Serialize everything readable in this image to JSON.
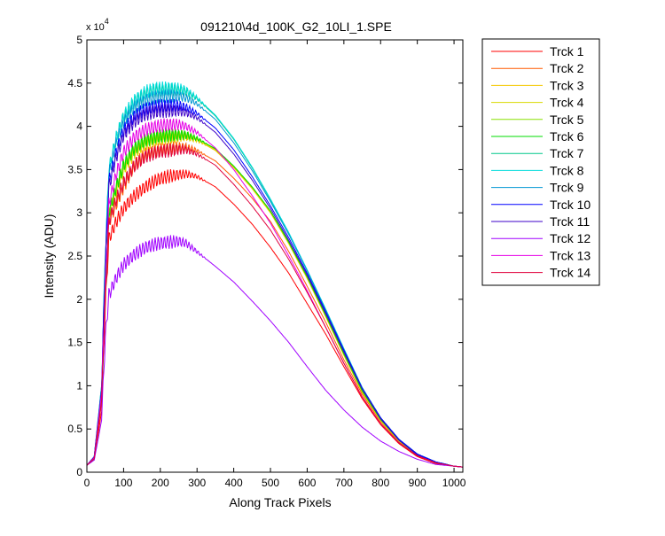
{
  "chart_data": {
    "type": "line",
    "title": "091210\\4d_100K_G2_10LI_1.SPE",
    "xlabel": "Along Track Pixels",
    "ylabel": "Intensity (ADU)",
    "xlim": [
      0,
      1024
    ],
    "ylim": [
      0,
      5
    ],
    "y_exponent_label": "x 10",
    "y_exponent": "4",
    "xticks": [
      0,
      100,
      200,
      300,
      400,
      500,
      600,
      700,
      800,
      900,
      1000
    ],
    "yticks": [
      0,
      0.5,
      1,
      1.5,
      2,
      2.5,
      3,
      3.5,
      4,
      4.5,
      5
    ],
    "ytick_labels": [
      "0",
      "0.5",
      "1",
      "1.5",
      "2",
      "2.5",
      "3",
      "3.5",
      "4",
      "4.5",
      "5"
    ],
    "grid": false,
    "legend_position": "outside right, top",
    "x": [
      0,
      20,
      40,
      50,
      60,
      80,
      100,
      130,
      160,
      190,
      220,
      250,
      270,
      300,
      350,
      400,
      450,
      500,
      550,
      600,
      650,
      700,
      750,
      800,
      850,
      900,
      950,
      1000,
      1024
    ],
    "series": [
      {
        "name": "Trck 1",
        "color": "#ff0000",
        "values": [
          0.08,
          0.15,
          0.7,
          1.9,
          2.7,
          2.9,
          3.05,
          3.2,
          3.3,
          3.38,
          3.42,
          3.44,
          3.45,
          3.42,
          3.3,
          3.1,
          2.87,
          2.6,
          2.3,
          1.95,
          1.6,
          1.22,
          0.85,
          0.55,
          0.33,
          0.18,
          0.1,
          0.07,
          0.06
        ]
      },
      {
        "name": "Trck 2",
        "color": "#ff5a00",
        "values": [
          0.08,
          0.16,
          0.8,
          2.0,
          2.9,
          3.1,
          3.3,
          3.55,
          3.68,
          3.72,
          3.74,
          3.76,
          3.76,
          3.72,
          3.6,
          3.4,
          3.17,
          2.9,
          2.55,
          2.15,
          1.74,
          1.3,
          0.9,
          0.58,
          0.35,
          0.19,
          0.11,
          0.07,
          0.06
        ]
      },
      {
        "name": "Trck 3",
        "color": "#f5c800",
        "values": [
          0.08,
          0.16,
          0.85,
          2.05,
          3.0,
          3.25,
          3.5,
          3.7,
          3.8,
          3.85,
          3.87,
          3.88,
          3.88,
          3.84,
          3.72,
          3.52,
          3.28,
          3.0,
          2.64,
          2.24,
          1.8,
          1.35,
          0.92,
          0.6,
          0.36,
          0.2,
          0.11,
          0.07,
          0.06
        ]
      },
      {
        "name": "Trck 4",
        "color": "#d8d800",
        "values": [
          0.08,
          0.16,
          0.85,
          2.05,
          3.0,
          3.27,
          3.52,
          3.72,
          3.82,
          3.86,
          3.88,
          3.89,
          3.89,
          3.85,
          3.73,
          3.53,
          3.29,
          3.01,
          2.65,
          2.25,
          1.81,
          1.36,
          0.93,
          0.6,
          0.36,
          0.2,
          0.11,
          0.07,
          0.06
        ]
      },
      {
        "name": "Trck 5",
        "color": "#88e000",
        "values": [
          0.08,
          0.16,
          0.86,
          2.06,
          3.02,
          3.3,
          3.55,
          3.75,
          3.84,
          3.88,
          3.9,
          3.9,
          3.9,
          3.86,
          3.74,
          3.54,
          3.3,
          3.02,
          2.66,
          2.26,
          1.82,
          1.37,
          0.94,
          0.61,
          0.37,
          0.2,
          0.11,
          0.07,
          0.06
        ]
      },
      {
        "name": "Trck 6",
        "color": "#00dd00",
        "values": [
          0.08,
          0.16,
          0.86,
          2.06,
          3.02,
          3.3,
          3.55,
          3.75,
          3.84,
          3.88,
          3.9,
          3.9,
          3.9,
          3.86,
          3.74,
          3.54,
          3.3,
          3.02,
          2.66,
          2.26,
          1.82,
          1.37,
          0.94,
          0.61,
          0.37,
          0.2,
          0.11,
          0.07,
          0.06
        ]
      },
      {
        "name": "Trck 7",
        "color": "#00c88a",
        "values": [
          0.08,
          0.18,
          1.0,
          2.5,
          3.5,
          3.85,
          4.1,
          4.28,
          4.38,
          4.42,
          4.42,
          4.42,
          4.4,
          4.32,
          4.12,
          3.85,
          3.52,
          3.15,
          2.76,
          2.33,
          1.88,
          1.42,
          0.97,
          0.63,
          0.38,
          0.21,
          0.12,
          0.07,
          0.06
        ]
      },
      {
        "name": "Trck 8",
        "color": "#00dcdc",
        "values": [
          0.08,
          0.18,
          1.0,
          2.5,
          3.5,
          3.87,
          4.12,
          4.3,
          4.4,
          4.44,
          4.44,
          4.44,
          4.42,
          4.33,
          4.13,
          3.86,
          3.53,
          3.16,
          2.77,
          2.34,
          1.89,
          1.43,
          0.98,
          0.63,
          0.38,
          0.21,
          0.12,
          0.07,
          0.06
        ]
      },
      {
        "name": "Trck 9",
        "color": "#0096d2",
        "values": [
          0.08,
          0.18,
          0.98,
          2.45,
          3.45,
          3.8,
          4.05,
          4.22,
          4.3,
          4.34,
          4.35,
          4.35,
          4.33,
          4.26,
          4.08,
          3.81,
          3.49,
          3.13,
          2.75,
          2.33,
          1.88,
          1.42,
          0.97,
          0.63,
          0.38,
          0.21,
          0.12,
          0.07,
          0.06
        ]
      },
      {
        "name": "Trck 10",
        "color": "#0000ff",
        "values": [
          0.08,
          0.18,
          0.95,
          2.4,
          3.35,
          3.7,
          3.95,
          4.12,
          4.2,
          4.23,
          4.24,
          4.24,
          4.22,
          4.15,
          3.98,
          3.73,
          3.42,
          3.08,
          2.71,
          2.3,
          1.86,
          1.41,
          0.97,
          0.63,
          0.38,
          0.21,
          0.12,
          0.07,
          0.06
        ]
      },
      {
        "name": "Trck 11",
        "color": "#3c00c8",
        "values": [
          0.08,
          0.18,
          0.95,
          2.35,
          3.3,
          3.65,
          3.9,
          4.06,
          4.14,
          4.17,
          4.18,
          4.18,
          4.16,
          4.1,
          3.93,
          3.68,
          3.38,
          3.05,
          2.68,
          2.28,
          1.84,
          1.39,
          0.96,
          0.62,
          0.37,
          0.2,
          0.11,
          0.07,
          0.06
        ]
      },
      {
        "name": "Trck 12",
        "color": "#a000ff",
        "values": [
          0.08,
          0.14,
          0.6,
          1.55,
          2.05,
          2.25,
          2.4,
          2.52,
          2.6,
          2.64,
          2.66,
          2.67,
          2.65,
          2.55,
          2.38,
          2.2,
          1.98,
          1.75,
          1.5,
          1.22,
          0.95,
          0.72,
          0.52,
          0.36,
          0.24,
          0.15,
          0.09,
          0.07,
          0.06
        ]
      },
      {
        "name": "Trck 13",
        "color": "#e600e6",
        "values": [
          0.08,
          0.17,
          0.9,
          2.15,
          3.1,
          3.45,
          3.7,
          3.88,
          3.96,
          4.0,
          4.02,
          4.02,
          4.0,
          3.93,
          3.75,
          3.5,
          3.2,
          2.88,
          2.5,
          2.1,
          1.68,
          1.26,
          0.87,
          0.56,
          0.34,
          0.19,
          0.11,
          0.07,
          0.06
        ]
      },
      {
        "name": "Trck 14",
        "color": "#e0003c",
        "values": [
          0.08,
          0.16,
          0.82,
          2.0,
          2.9,
          3.15,
          3.35,
          3.55,
          3.65,
          3.7,
          3.72,
          3.73,
          3.73,
          3.68,
          3.55,
          3.33,
          3.08,
          2.8,
          2.46,
          2.08,
          1.68,
          1.26,
          0.87,
          0.56,
          0.34,
          0.19,
          0.11,
          0.07,
          0.06
        ]
      }
    ]
  }
}
